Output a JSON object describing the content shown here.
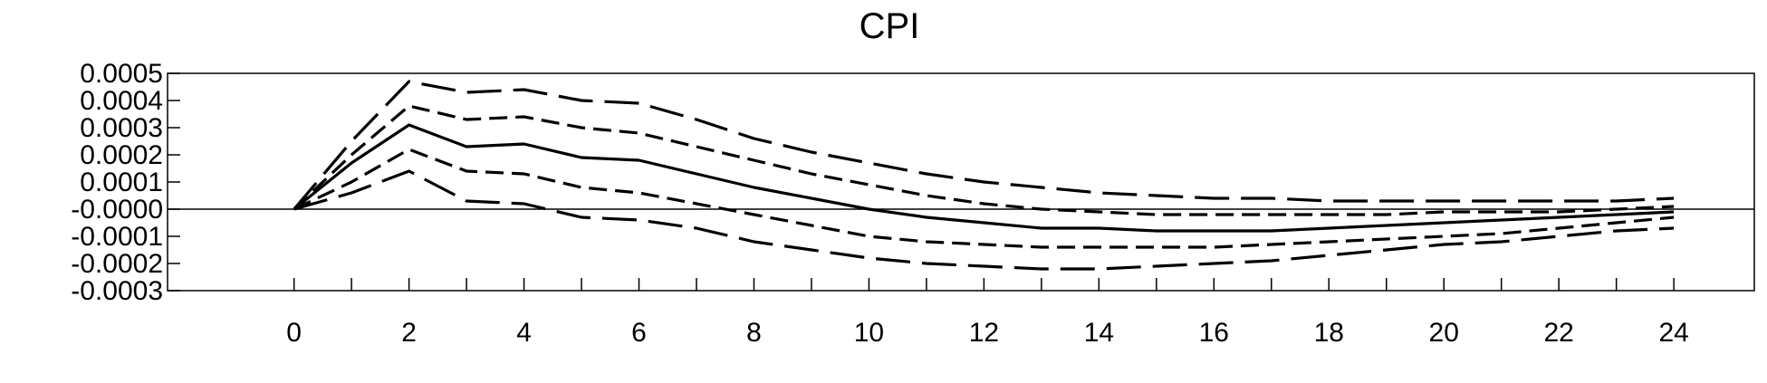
{
  "chart_data": {
    "type": "line",
    "title": "CPI",
    "xlabel": "",
    "ylabel": "",
    "xlim": [
      -2.2,
      25.4
    ],
    "ylim": [
      -0.0003,
      0.0005
    ],
    "x": [
      0,
      1,
      2,
      3,
      4,
      5,
      6,
      7,
      8,
      9,
      10,
      11,
      12,
      13,
      14,
      15,
      16,
      17,
      18,
      19,
      20,
      21,
      22,
      23,
      24
    ],
    "x_ticks": [
      0,
      2,
      4,
      6,
      8,
      10,
      12,
      14,
      16,
      18,
      20,
      22,
      24
    ],
    "x_tick_labels": [
      "0",
      "2",
      "4",
      "6",
      "8",
      "10",
      "12",
      "14",
      "16",
      "18",
      "20",
      "22",
      "24"
    ],
    "y_ticks": [
      0.0005,
      0.0004,
      0.0003,
      0.0002,
      0.0001,
      0,
      -0.0001,
      -0.0002,
      -0.0003
    ],
    "y_tick_labels": [
      "0.0005",
      "0.0004",
      "0.0003",
      "0.0002",
      "0.0001",
      "-0.0000",
      "-0.0001",
      "-0.0002",
      "-0.0003"
    ],
    "zero_line": true,
    "grid": false,
    "legend": "none",
    "series": [
      {
        "style": "long-dash",
        "values": [
          0,
          0.00025,
          0.00047,
          0.00043,
          0.00044,
          0.0004,
          0.00039,
          0.00033,
          0.00026,
          0.00021,
          0.00017,
          0.00013,
          0.0001,
          8e-05,
          6e-05,
          5e-05,
          4e-05,
          4e-05,
          3e-05,
          3e-05,
          3e-05,
          3e-05,
          3e-05,
          3e-05,
          4e-05
        ]
      },
      {
        "style": "short-dash",
        "values": [
          0,
          0.0002,
          0.00038,
          0.00033,
          0.00034,
          0.0003,
          0.00028,
          0.00023,
          0.00018,
          0.00013,
          9e-05,
          5e-05,
          2e-05,
          0,
          -1e-05,
          -2e-05,
          -2e-05,
          -2e-05,
          -2e-05,
          -2e-05,
          -1e-05,
          -1e-05,
          -1e-05,
          0,
          1e-05
        ]
      },
      {
        "style": "solid",
        "values": [
          0,
          0.00017,
          0.00031,
          0.00023,
          0.00024,
          0.00019,
          0.00018,
          0.00013,
          8e-05,
          4e-05,
          0,
          -3e-05,
          -5e-05,
          -7e-05,
          -7e-05,
          -8e-05,
          -8e-05,
          -8e-05,
          -7e-05,
          -6e-05,
          -5e-05,
          -4e-05,
          -3e-05,
          -2e-05,
          -1e-05
        ]
      },
      {
        "style": "short-dash",
        "values": [
          0,
          0.0001,
          0.00022,
          0.00014,
          0.00013,
          8e-05,
          6e-05,
          2e-05,
          -2e-05,
          -6e-05,
          -0.0001,
          -0.00012,
          -0.00013,
          -0.00014,
          -0.00014,
          -0.00014,
          -0.00014,
          -0.00013,
          -0.00012,
          -0.00011,
          -0.0001,
          -9e-05,
          -7e-05,
          -5e-05,
          -3e-05
        ]
      },
      {
        "style": "long-dash",
        "values": [
          0,
          6e-05,
          0.00014,
          3e-05,
          2e-05,
          -3e-05,
          -4e-05,
          -7e-05,
          -0.00012,
          -0.00015,
          -0.00018,
          -0.0002,
          -0.00021,
          -0.00022,
          -0.00022,
          -0.00021,
          -0.0002,
          -0.00019,
          -0.00017,
          -0.00015,
          -0.00013,
          -0.00012,
          -0.0001,
          -8e-05,
          -7e-05
        ]
      }
    ]
  }
}
